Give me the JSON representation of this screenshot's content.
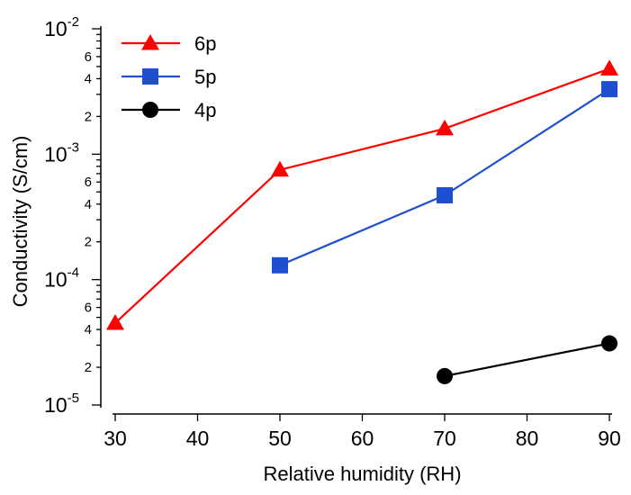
{
  "chart_data": {
    "type": "line",
    "xlabel": "Relative humidity (RH)",
    "ylabel": "Conductivity (S/cm)",
    "x_ticks": [
      30,
      40,
      50,
      60,
      70,
      80,
      90
    ],
    "xlim": [
      30,
      90
    ],
    "ylim": [
      1e-05,
      0.01
    ],
    "y_scale": "log",
    "y_major_ticks": [
      {
        "value": 0.01,
        "base": "10",
        "exp": "-2"
      },
      {
        "value": 0.001,
        "base": "10",
        "exp": "-3"
      },
      {
        "value": 0.0001,
        "base": "10",
        "exp": "-4"
      },
      {
        "value": 1e-05,
        "base": "10",
        "exp": "-5"
      }
    ],
    "y_minor_labels": [
      "2",
      "4",
      "6"
    ],
    "grid": false,
    "legend_position": "top-left",
    "series": [
      {
        "name": "6p",
        "marker": "triangle",
        "color": "#ff0000",
        "x": [
          30,
          50,
          70,
          90
        ],
        "y": [
          4.5e-05,
          0.00075,
          0.0016,
          0.0048
        ]
      },
      {
        "name": "5p",
        "marker": "square",
        "color": "#1f4fd1",
        "x": [
          50,
          70,
          90
        ],
        "y": [
          0.00013,
          0.00047,
          0.0033
        ]
      },
      {
        "name": "4p",
        "marker": "circle",
        "color": "#000000",
        "x": [
          70,
          90
        ],
        "y": [
          1.7e-05,
          3.1e-05
        ]
      }
    ]
  }
}
